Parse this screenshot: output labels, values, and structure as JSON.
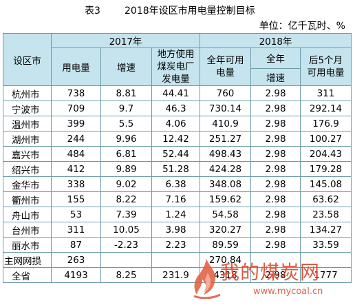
{
  "title": {
    "label": "表3",
    "text": "2018年设区市用电量控制目标"
  },
  "unit": "单位：亿千瓦时、%",
  "headers": {
    "region": "设区市",
    "year2017": "2017年",
    "year2018": "2018年",
    "electricity": "用电量",
    "growth": "增速",
    "coal_line1": "地方使用",
    "coal_line2": "煤炭电厂",
    "coal_line3": "发电量",
    "annual_line1": "全年可用",
    "annual_line2": "电量",
    "full_year": "全年",
    "full_year_growth": "增速",
    "last5_line1": "后5个月",
    "last5_line2": "可用电量"
  },
  "rows": [
    [
      "杭州市",
      "738",
      "8.81",
      "44.41",
      "760",
      "2.98",
      "311"
    ],
    [
      "宁波市",
      "709",
      "9.7",
      "46.3",
      "730.14",
      "2.98",
      "292.14"
    ],
    [
      "温州市",
      "399",
      "5.5",
      "4.06",
      "410.9",
      "2.98",
      "176.9"
    ],
    [
      "湖州市",
      "244",
      "9.96",
      "12.42",
      "251.27",
      "2.98",
      "100.27"
    ],
    [
      "嘉兴市",
      "484",
      "6.81",
      "52.44",
      "498.43",
      "2.98",
      "204.43"
    ],
    [
      "绍兴市",
      "412",
      "9.89",
      "51.28",
      "424.28",
      "2.98",
      "179.28"
    ],
    [
      "金华市",
      "338",
      "9.02",
      "6.38",
      "348.08",
      "2.98",
      "145.08"
    ],
    [
      "衢州市",
      "155",
      "8.22",
      "7.16",
      "159.62",
      "2.98",
      "63.62"
    ],
    [
      "舟山市",
      "53",
      "7.39",
      "1.24",
      "54.58",
      "2.98",
      "23.58"
    ],
    [
      "台州市",
      "311",
      "10.05",
      "3.98",
      "320.27",
      "2.98",
      "134.27"
    ],
    [
      "丽水市",
      "87",
      "-2.23",
      "2.23",
      "89.59",
      "2.98",
      "33.59"
    ],
    [
      "主网网损",
      "263",
      "",
      "",
      "270.84",
      "",
      ""
    ],
    [
      "全省",
      "4193",
      "8.25",
      "231.9",
      "4318",
      "2.98",
      "1777"
    ]
  ],
  "watermark": {
    "text": "我的煤炭网",
    "url": "www.mycoal.cn"
  }
}
